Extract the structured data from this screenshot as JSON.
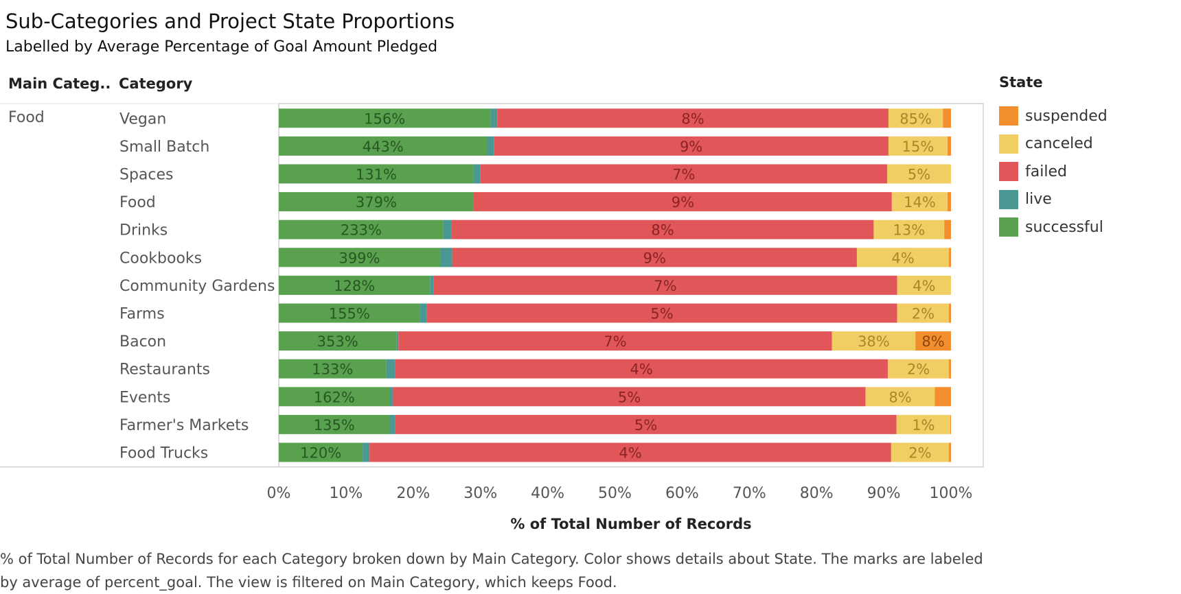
{
  "title": "Sub-Categories and Project State Proportions",
  "subtitle": "Labelled by Average Percentage of Goal Amount Pledged",
  "headers": {
    "main_category": "Main Categ..",
    "category": "Category"
  },
  "main_category_value": "Food",
  "legend": {
    "title": "State",
    "items": [
      {
        "label": "suspended",
        "color": "#F28E2B"
      },
      {
        "label": "canceled",
        "color": "#F1CE63"
      },
      {
        "label": "failed",
        "color": "#E15759"
      },
      {
        "label": "live",
        "color": "#499894"
      },
      {
        "label": "successful",
        "color": "#59A14F"
      }
    ]
  },
  "caption": "% of Total Number of Records for each Category broken down by Main Category.  Color shows details about State.  The marks are labeled by average of percent_goal. The view is filtered on Main Category, which keeps Food.",
  "chart_data": {
    "type": "bar",
    "orientation": "horizontal",
    "stacked": "100%",
    "xlabel": "% of Total Number of Records",
    "xlim": [
      0,
      100
    ],
    "xticks": [
      "0%",
      "10%",
      "20%",
      "30%",
      "40%",
      "50%",
      "60%",
      "70%",
      "80%",
      "90%",
      "100%"
    ],
    "categories": [
      "Vegan",
      "Small Batch",
      "Spaces",
      "Food",
      "Drinks",
      "Cookbooks",
      "Community Gardens",
      "Farms",
      "Bacon",
      "Restaurants",
      "Events",
      "Farmer's Markets",
      "Food Trucks"
    ],
    "series": [
      {
        "name": "successful",
        "color": "#59A14F",
        "values": [
          31.5,
          31.0,
          29.0,
          29.0,
          24.5,
          24.0,
          22.5,
          21.0,
          17.5,
          16.0,
          16.5,
          16.5,
          12.5
        ],
        "labels": [
          "156%",
          "443%",
          "131%",
          "379%",
          "233%",
          "399%",
          "128%",
          "155%",
          "353%",
          "133%",
          "162%",
          "135%",
          "120%"
        ]
      },
      {
        "name": "live",
        "color": "#499894",
        "values": [
          1.0,
          1.0,
          1.0,
          0,
          1.2,
          1.8,
          0.5,
          1.0,
          0.3,
          1.3,
          0.5,
          0.8,
          1.0
        ],
        "labels": [
          "",
          "",
          "",
          "",
          "",
          "",
          "",
          "",
          "",
          "",
          "",
          "",
          ""
        ]
      },
      {
        "name": "failed",
        "color": "#E15759",
        "values": [
          58.2,
          58.7,
          60.5,
          62.2,
          62.8,
          60.2,
          69.0,
          70.0,
          64.5,
          73.3,
          70.3,
          74.6,
          77.6
        ],
        "labels": [
          "8%",
          "9%",
          "7%",
          "9%",
          "8%",
          "9%",
          "7%",
          "5%",
          "7%",
          "4%",
          "5%",
          "5%",
          "4%"
        ]
      },
      {
        "name": "canceled",
        "color": "#F1CE63",
        "values": [
          8.1,
          8.8,
          9.5,
          8.3,
          10.5,
          13.7,
          8.0,
          7.7,
          12.4,
          9.1,
          10.3,
          8.0,
          8.6
        ],
        "labels": [
          "85%",
          "15%",
          "5%",
          "14%",
          "13%",
          "4%",
          "4%",
          "2%",
          "38%",
          "2%",
          "8%",
          "1%",
          "2%"
        ]
      },
      {
        "name": "suspended",
        "color": "#F28E2B",
        "values": [
          1.2,
          0.5,
          0,
          0.5,
          1.0,
          0.3,
          0,
          0.3,
          5.3,
          0.3,
          2.4,
          0.1,
          0.3
        ],
        "labels": [
          "",
          "",
          "",
          "",
          "",
          "",
          "",
          "",
          "8%",
          "",
          "",
          "",
          ""
        ]
      }
    ]
  }
}
